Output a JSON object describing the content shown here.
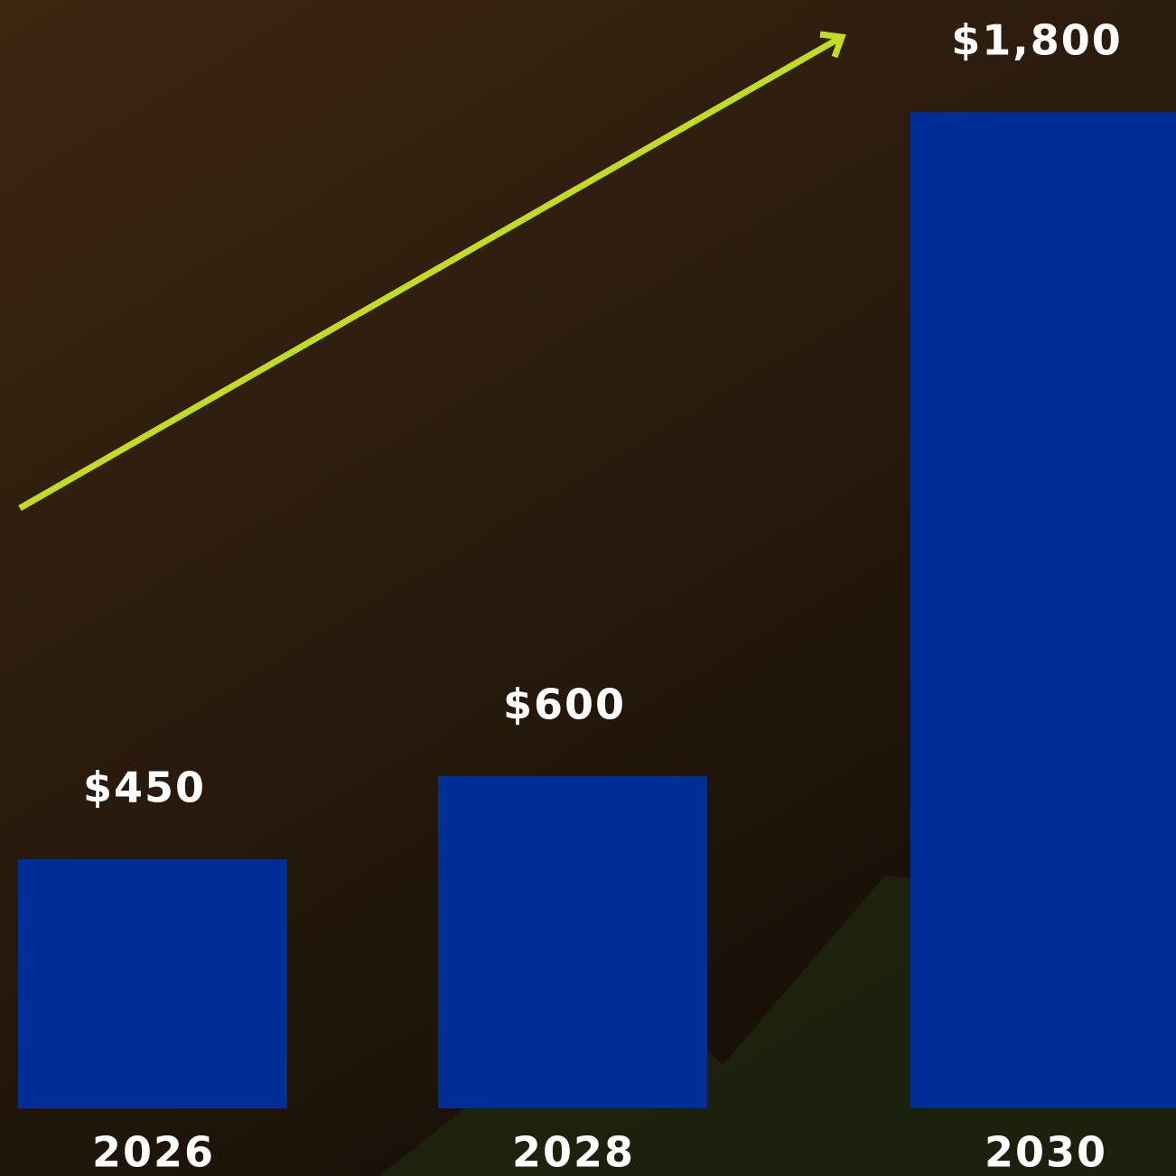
{
  "chart_data": {
    "type": "bar",
    "categories": [
      "2026",
      "2028",
      "2030"
    ],
    "values": [
      450,
      600,
      1800
    ],
    "value_labels": [
      "$450",
      "$600",
      "$1,800"
    ],
    "color": "#002d98"
  }
}
